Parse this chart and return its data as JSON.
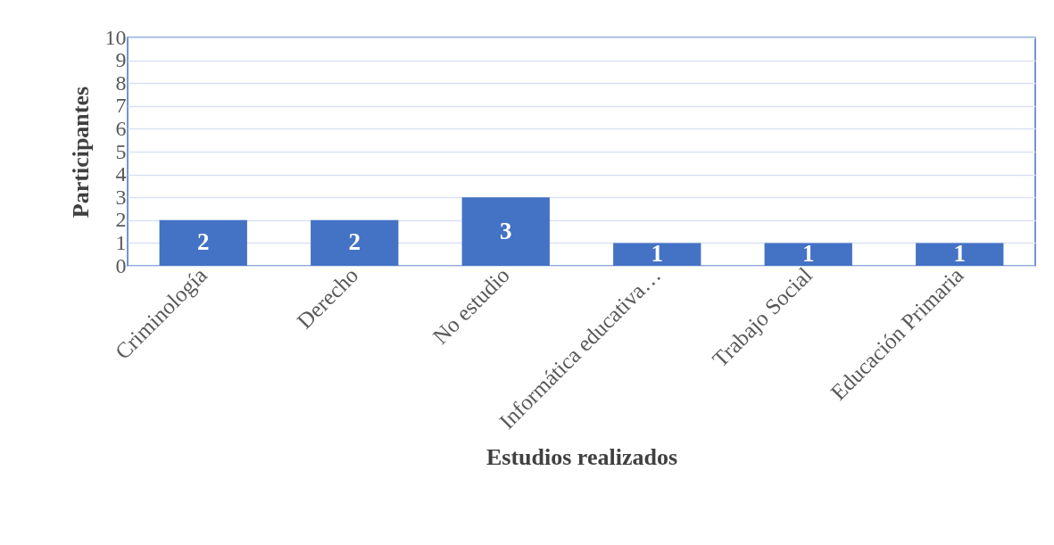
{
  "chart_data": {
    "type": "bar",
    "xlabel": "Estudios  realizados",
    "ylabel": "Participantes",
    "categories": [
      "Criminología",
      "Derecho",
      "No estudio",
      "Informática educativa…",
      "Trabajo Social",
      "Educación Primaria"
    ],
    "values": [
      2,
      2,
      3,
      1,
      1,
      1
    ],
    "color": "#4472c4",
    "ylim": [
      0,
      10
    ],
    "yticks": [
      0,
      1,
      2,
      3,
      4,
      5,
      6,
      7,
      8,
      9,
      10
    ],
    "grid": "y",
    "data_labels": true
  }
}
